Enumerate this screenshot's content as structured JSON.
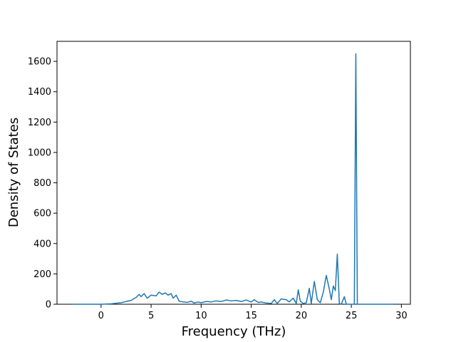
{
  "chart_data": {
    "type": "line",
    "xlabel": "Frequency (THz)",
    "ylabel": "Density of States",
    "x": [
      -2.8,
      0,
      1,
      2,
      2.5,
      3,
      3.5,
      3.8,
      4,
      4.3,
      4.6,
      5,
      5.5,
      5.8,
      6.1,
      6.4,
      6.7,
      7,
      7.2,
      7.5,
      7.8,
      8.2,
      8.6,
      9,
      9.3,
      9.7,
      10,
      10.5,
      11,
      11.5,
      12,
      12.5,
      13,
      13.5,
      14,
      14.5,
      15,
      15.3,
      15.7,
      16,
      16.5,
      17,
      17.3,
      17.6,
      18,
      18.5,
      18.8,
      19.2,
      19.5,
      19.7,
      19.9,
      20.2,
      20.5,
      20.8,
      21,
      21.3,
      21.6,
      21.9,
      22.2,
      22.5,
      22.8,
      23,
      23.2,
      23.4,
      23.6,
      23.8,
      24,
      24.3,
      24.5,
      25,
      25.3,
      25.45,
      25.6,
      25.7,
      26,
      29.3
    ],
    "series": [
      {
        "color": "#1f77b4",
        "values": [
          0,
          0,
          3,
          10,
          18,
          25,
          45,
          65,
          50,
          70,
          40,
          60,
          55,
          80,
          65,
          75,
          60,
          70,
          40,
          60,
          20,
          15,
          12,
          20,
          8,
          15,
          10,
          18,
          15,
          22,
          18,
          28,
          22,
          25,
          18,
          28,
          15,
          30,
          12,
          15,
          8,
          5,
          30,
          5,
          35,
          30,
          15,
          40,
          5,
          95,
          20,
          5,
          10,
          105,
          5,
          150,
          30,
          10,
          80,
          190,
          100,
          30,
          120,
          90,
          330,
          5,
          0,
          50,
          0,
          0,
          0,
          1650,
          0,
          0,
          0,
          0
        ]
      }
    ],
    "xlim": [
      -4.4,
      30.9
    ],
    "xticks": [
      0,
      5,
      10,
      15,
      20,
      25,
      30
    ],
    "ylim": [
      0,
      1732
    ],
    "yticks": [
      0,
      200,
      400,
      600,
      800,
      1000,
      1200,
      1400,
      1600
    ]
  }
}
